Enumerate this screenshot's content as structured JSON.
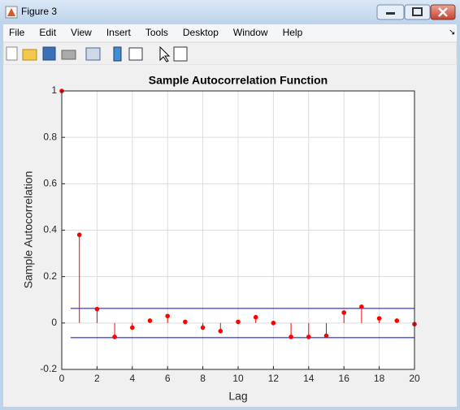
{
  "window": {
    "title": "Figure 3",
    "menu": [
      "File",
      "Edit",
      "View",
      "Insert",
      "Tools",
      "Desktop",
      "Window",
      "Help"
    ]
  },
  "chart_data": {
    "type": "stem",
    "title": "Sample Autocorrelation Function",
    "x_label": "Lag",
    "y_label": "Sample Autocorrelation",
    "x": [
      0,
      1,
      2,
      3,
      4,
      5,
      6,
      7,
      8,
      9,
      10,
      11,
      12,
      13,
      14,
      15,
      16,
      17,
      18,
      19,
      20
    ],
    "values": [
      1,
      0.38,
      0.06,
      -0.06,
      -0.02,
      0.01,
      0.03,
      0.005,
      -0.02,
      -0.035,
      0.005,
      0.025,
      0.0,
      -0.06,
      -0.06,
      -0.055,
      0.045,
      0.07,
      0.02,
      0.01,
      -0.005
    ],
    "color": "#ff0000",
    "confidence_bounds": [
      0.063,
      -0.063
    ],
    "bounds_x": [
      0.5,
      20
    ],
    "bounds_color": "#0000ff",
    "xlim": [
      0,
      20
    ],
    "xticks": [
      0,
      2,
      4,
      6,
      8,
      10,
      12,
      14,
      16,
      18,
      20
    ],
    "ylim": [
      -0.2,
      1
    ],
    "yticks": [
      -0.2,
      0,
      0.2,
      0.4,
      0.6,
      0.8,
      1
    ],
    "grid": true
  }
}
